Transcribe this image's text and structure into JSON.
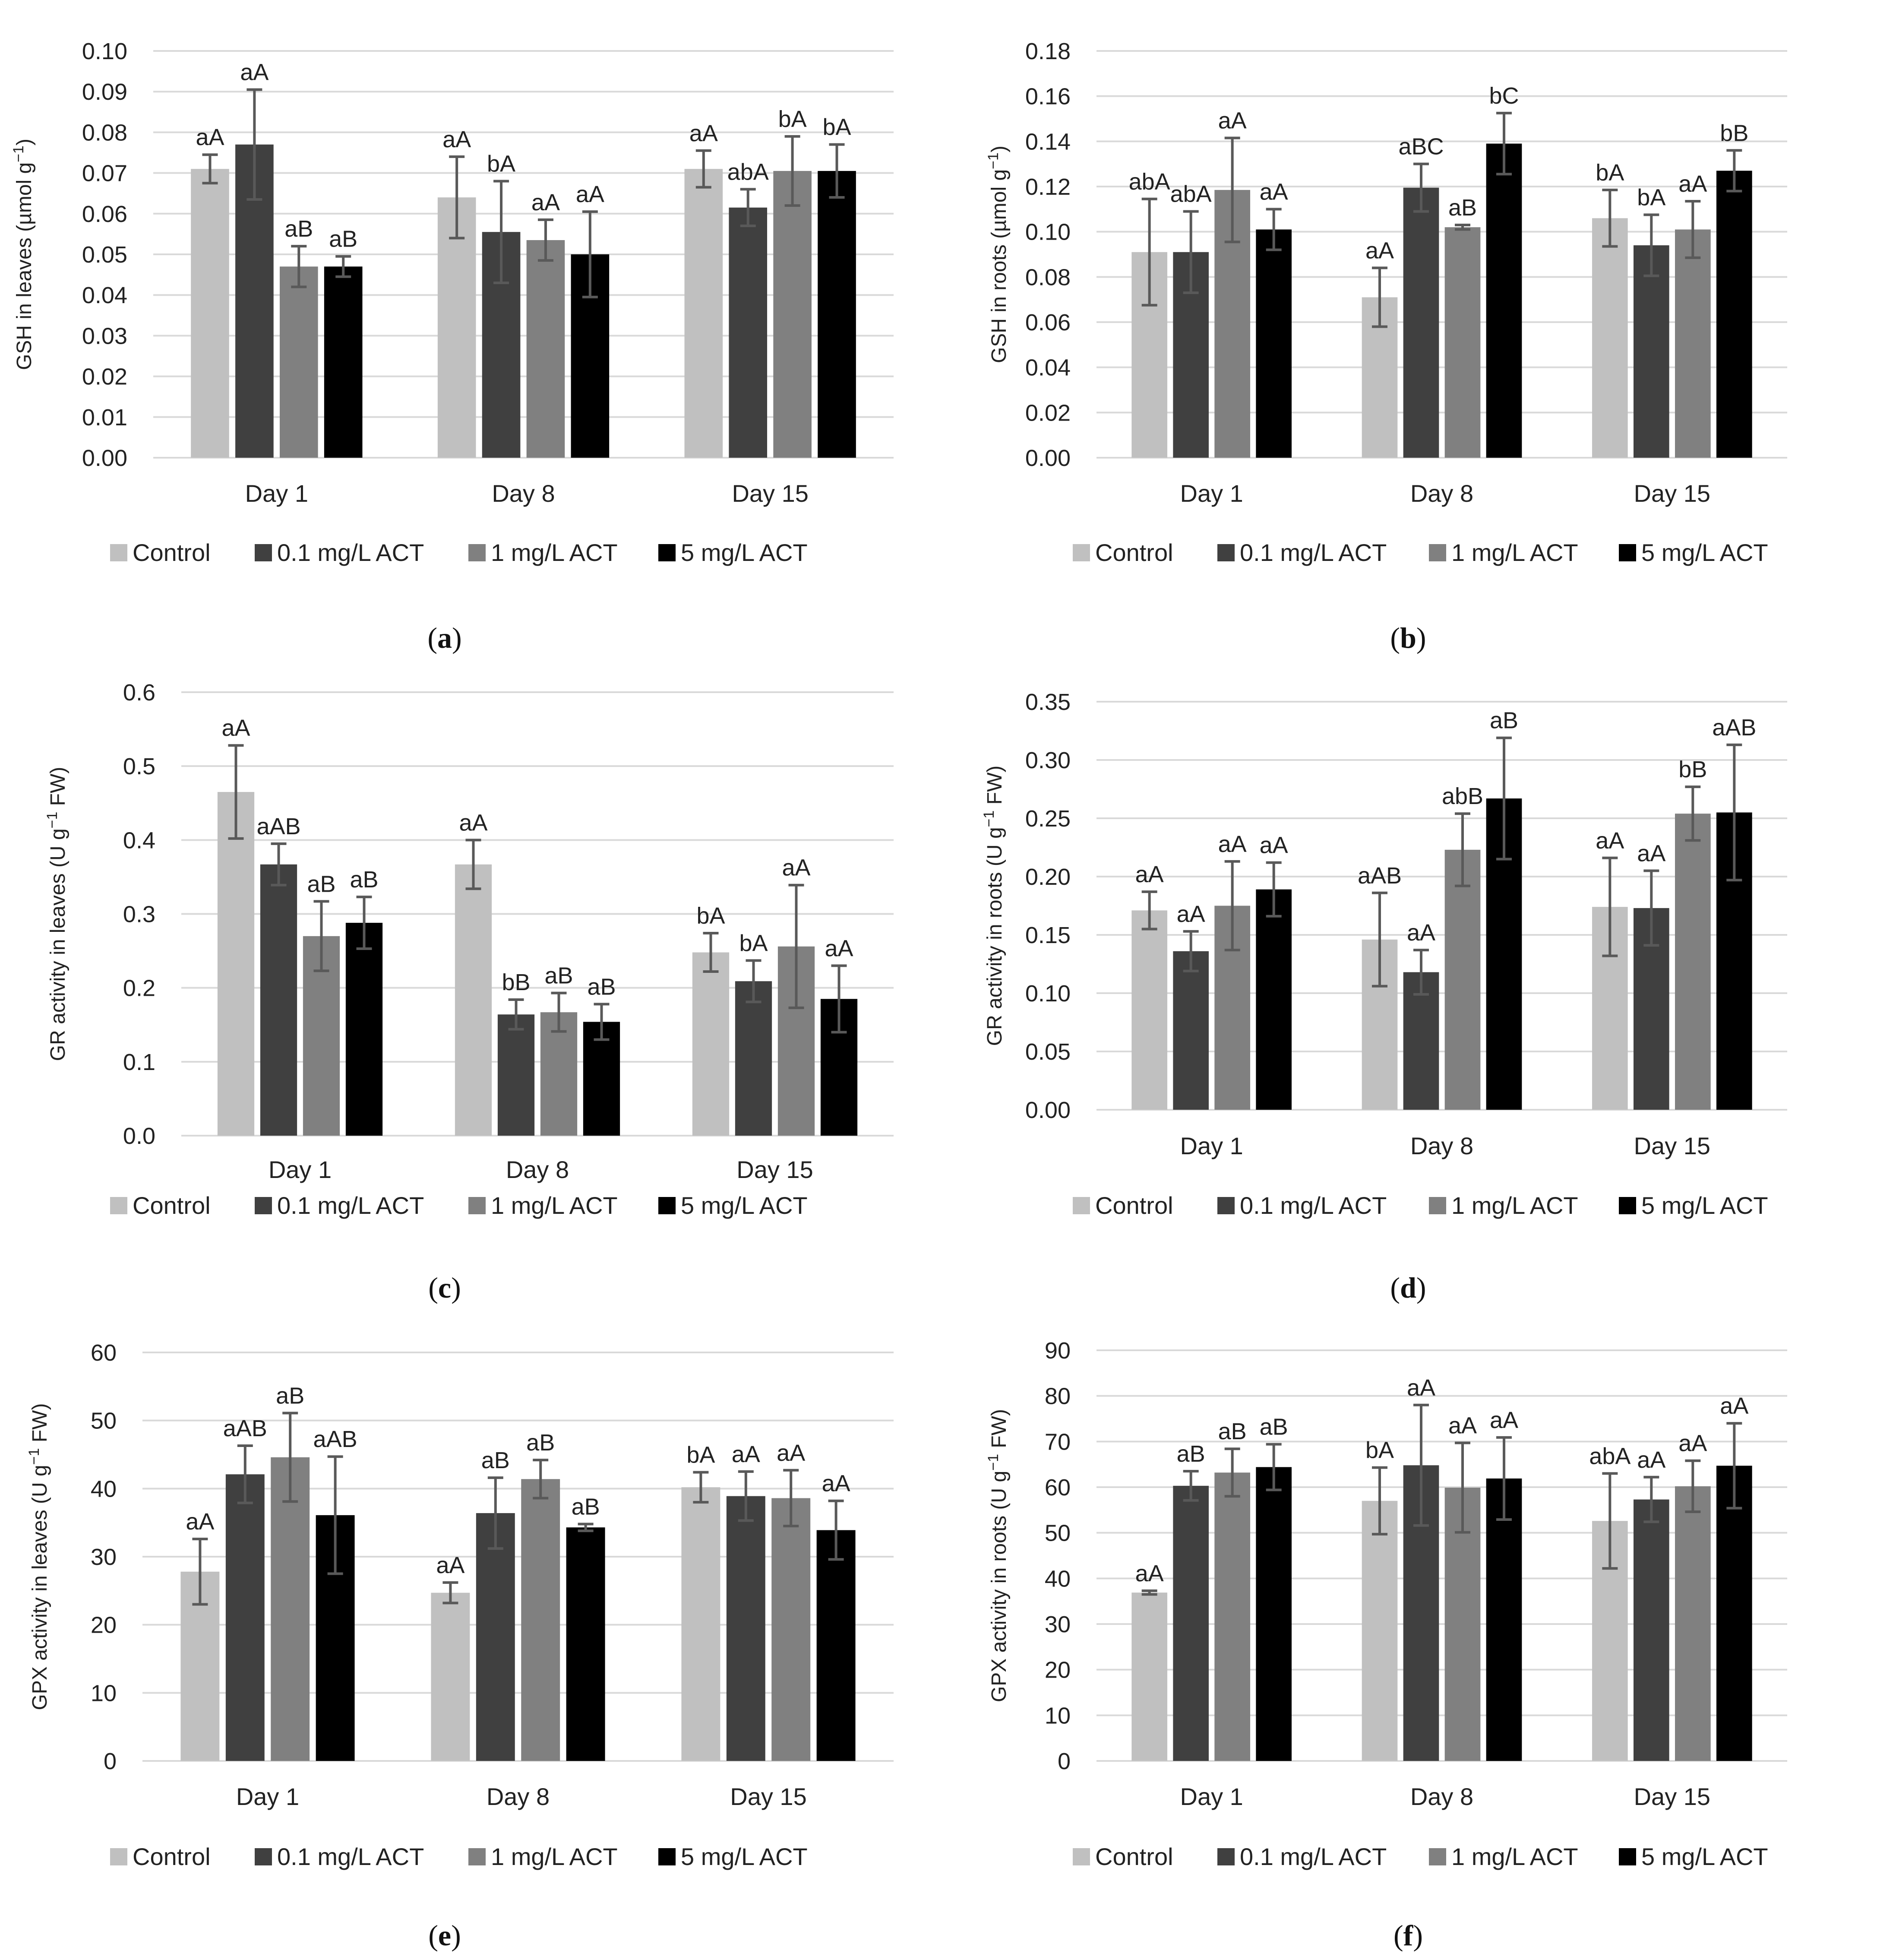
{
  "legend_colors": [
    "#c0c0c0",
    "#404040",
    "#808080",
    "#000000"
  ],
  "chart_data": [
    {
      "type": "bar",
      "caption": [
        "(",
        "a",
        ")"
      ],
      "ylabel": [
        "GSH in leaves (µmol g",
        "−1",
        ")"
      ],
      "categories": [
        "Day 1",
        "Day 8",
        "Day 15"
      ],
      "ylim": [
        0,
        0.1
      ],
      "yticks": [
        "0.00",
        "0.01",
        "0.02",
        "0.03",
        "0.04",
        "0.05",
        "0.06",
        "0.07",
        "0.08",
        "0.09",
        "0.10"
      ],
      "grid": true,
      "legend_position": "bottom",
      "series": [
        {
          "name": "Control",
          "values": [
            0.071,
            0.064,
            0.071
          ],
          "errors": [
            0.0035,
            0.01,
            0.0045
          ],
          "labels": [
            "aA",
            "aA",
            "aA"
          ]
        },
        {
          "name": "0.1 mg/L ACT",
          "values": [
            0.077,
            0.0555,
            0.0615
          ],
          "errors": [
            0.0135,
            0.0125,
            0.0045
          ],
          "labels": [
            "aA",
            "bA",
            "abA"
          ]
        },
        {
          "name": "1 mg/L ACT",
          "values": [
            0.047,
            0.0535,
            0.0705
          ],
          "errors": [
            0.005,
            0.005,
            0.0085
          ],
          "labels": [
            "aB",
            "aA",
            "bA"
          ]
        },
        {
          "name": "5 mg/L ACT",
          "values": [
            0.047,
            0.05,
            0.0705
          ],
          "errors": [
            0.0025,
            0.0105,
            0.0065
          ],
          "labels": [
            "aB",
            "aA",
            "bA"
          ]
        }
      ]
    },
    {
      "type": "bar",
      "caption": [
        "(",
        "b",
        ")"
      ],
      "ylabel": [
        "GSH in roots (µmol g",
        "−1",
        ")"
      ],
      "categories": [
        "Day 1",
        "Day 8",
        "Day 15"
      ],
      "ylim": [
        0,
        0.18
      ],
      "yticks": [
        "0.00",
        "0.02",
        "0.04",
        "0.06",
        "0.08",
        "0.10",
        "0.12",
        "0.14",
        "0.16",
        "0.18"
      ],
      "grid": true,
      "legend_position": "bottom",
      "series": [
        {
          "name": "Control",
          "values": [
            0.091,
            0.071,
            0.106
          ],
          "errors": [
            0.0235,
            0.013,
            0.0125
          ],
          "labels": [
            "abA",
            "aA",
            "bA"
          ]
        },
        {
          "name": "0.1 mg/L ACT",
          "values": [
            0.091,
            0.1195,
            0.094
          ],
          "errors": [
            0.018,
            0.0105,
            0.0135
          ],
          "labels": [
            "abA",
            "aBC",
            "bA"
          ]
        },
        {
          "name": "1 mg/L ACT",
          "values": [
            0.1185,
            0.102,
            0.101
          ],
          "errors": [
            0.023,
            0.001,
            0.0125
          ],
          "labels": [
            "aA",
            "aB",
            "aA"
          ]
        },
        {
          "name": "5 mg/L ACT",
          "values": [
            0.101,
            0.139,
            0.127
          ],
          "errors": [
            0.009,
            0.0135,
            0.009
          ],
          "labels": [
            "aA",
            "bC",
            "bB"
          ]
        }
      ]
    },
    {
      "type": "bar",
      "caption": [
        "(",
        "c",
        ")"
      ],
      "ylabel": [
        "GR activity  in leaves  (U g",
        "−1",
        " FW)"
      ],
      "categories": [
        "Day 1",
        "Day 8",
        "Day 15"
      ],
      "ylim": [
        0,
        0.6
      ],
      "yticks": [
        "0.0",
        "0.1",
        "0.2",
        "0.3",
        "0.4",
        "0.5",
        "0.6"
      ],
      "grid": true,
      "legend_position": "bottom",
      "series": [
        {
          "name": "Control",
          "values": [
            0.465,
            0.367,
            0.248
          ],
          "errors": [
            0.063,
            0.033,
            0.026
          ],
          "labels": [
            "aA",
            "aA",
            "bA"
          ]
        },
        {
          "name": "0.1 mg/L ACT",
          "values": [
            0.367,
            0.164,
            0.209
          ],
          "errors": [
            0.028,
            0.02,
            0.028
          ],
          "labels": [
            "aAB",
            "bB",
            "bA"
          ]
        },
        {
          "name": "1 mg/L ACT",
          "values": [
            0.27,
            0.167,
            0.256
          ],
          "errors": [
            0.047,
            0.026,
            0.083
          ],
          "labels": [
            "aB",
            "aB",
            "aA"
          ]
        },
        {
          "name": "5 mg/L ACT",
          "values": [
            0.288,
            0.154,
            0.185
          ],
          "errors": [
            0.035,
            0.024,
            0.045
          ],
          "labels": [
            "aB",
            "aB",
            "aA"
          ]
        }
      ]
    },
    {
      "type": "bar",
      "caption": [
        "(",
        "d",
        ")"
      ],
      "ylabel": [
        "GR activity in roots  (U g",
        "−1",
        " FW)"
      ],
      "categories": [
        "Day 1",
        "Day 8",
        "Day 15"
      ],
      "ylim": [
        0,
        0.35
      ],
      "yticks": [
        "0.00",
        "0.05",
        "0.10",
        "0.15",
        "0.20",
        "0.25",
        "0.30",
        "0.35"
      ],
      "grid": true,
      "legend_position": "bottom",
      "series": [
        {
          "name": "Control",
          "values": [
            0.171,
            0.146,
            0.174
          ],
          "errors": [
            0.016,
            0.04,
            0.042
          ],
          "labels": [
            "aA",
            "aAB",
            "aA"
          ]
        },
        {
          "name": "0.1 mg/L ACT",
          "values": [
            0.136,
            0.118,
            0.173
          ],
          "errors": [
            0.017,
            0.019,
            0.032
          ],
          "labels": [
            "aA",
            "aA",
            "aA"
          ]
        },
        {
          "name": "1 mg/L ACT",
          "values": [
            0.175,
            0.223,
            0.254
          ],
          "errors": [
            0.038,
            0.031,
            0.023
          ],
          "labels": [
            "aA",
            "abB",
            "bB"
          ]
        },
        {
          "name": "5 mg/L ACT",
          "values": [
            0.189,
            0.267,
            0.255
          ],
          "errors": [
            0.023,
            0.052,
            0.058
          ],
          "labels": [
            "aA",
            "aB",
            "aAB"
          ]
        }
      ]
    },
    {
      "type": "bar",
      "caption": [
        "(",
        "e",
        ")"
      ],
      "ylabel": [
        "GPX activity in leaves (U g",
        "−1",
        " FW)"
      ],
      "categories": [
        "Day 1",
        "Day 8",
        "Day 15"
      ],
      "ylim": [
        0,
        60
      ],
      "yticks": [
        "0",
        "10",
        "20",
        "30",
        "40",
        "50",
        "60"
      ],
      "grid": true,
      "legend_position": "bottom",
      "series": [
        {
          "name": "Control",
          "values": [
            27.8,
            24.7,
            40.2
          ],
          "errors": [
            4.8,
            1.5,
            2.2
          ],
          "labels": [
            "aA",
            "aA",
            "bA"
          ]
        },
        {
          "name": "0.1 mg/L ACT",
          "values": [
            42.1,
            36.4,
            38.9
          ],
          "errors": [
            4.2,
            5.2,
            3.6
          ],
          "labels": [
            "aAB",
            "aB",
            "aA"
          ]
        },
        {
          "name": "1 mg/L ACT",
          "values": [
            44.6,
            41.4,
            38.6
          ],
          "errors": [
            6.5,
            2.8,
            4.1
          ],
          "labels": [
            "aB",
            "aB",
            "aA"
          ]
        },
        {
          "name": "5 mg/L ACT",
          "values": [
            36.1,
            34.3,
            33.9
          ],
          "errors": [
            8.6,
            0.5,
            4.3
          ],
          "labels": [
            "aAB",
            "aB",
            "aA"
          ]
        }
      ]
    },
    {
      "type": "bar",
      "caption": [
        "(",
        "f",
        ")"
      ],
      "ylabel": [
        "GPX activity in roots  (U g",
        "−1",
        " FW)"
      ],
      "categories": [
        "Day 1",
        "Day 8",
        "Day 15"
      ],
      "ylim": [
        0,
        90
      ],
      "yticks": [
        "0",
        "10",
        "20",
        "30",
        "40",
        "50",
        "60",
        "70",
        "80",
        "90"
      ],
      "grid": true,
      "legend_position": "bottom",
      "series": [
        {
          "name": "Control",
          "values": [
            36.9,
            57.0,
            52.6
          ],
          "errors": [
            0.4,
            7.3,
            10.4
          ],
          "labels": [
            "aA",
            "bA",
            "abA"
          ]
        },
        {
          "name": "0.1 mg/L ACT",
          "values": [
            60.3,
            64.8,
            57.3
          ],
          "errors": [
            3.2,
            13.2,
            4.9
          ],
          "labels": [
            "aB",
            "aA",
            "aA"
          ]
        },
        {
          "name": "1 mg/L ACT",
          "values": [
            63.2,
            59.9,
            60.2
          ],
          "errors": [
            5.2,
            9.8,
            5.6
          ],
          "labels": [
            "aB",
            "aA",
            "aA"
          ]
        },
        {
          "name": "5 mg/L ACT",
          "values": [
            64.4,
            61.9,
            64.7
          ],
          "errors": [
            5.0,
            9.0,
            9.3
          ],
          "labels": [
            "aB",
            "aA",
            "aA"
          ]
        }
      ]
    }
  ]
}
